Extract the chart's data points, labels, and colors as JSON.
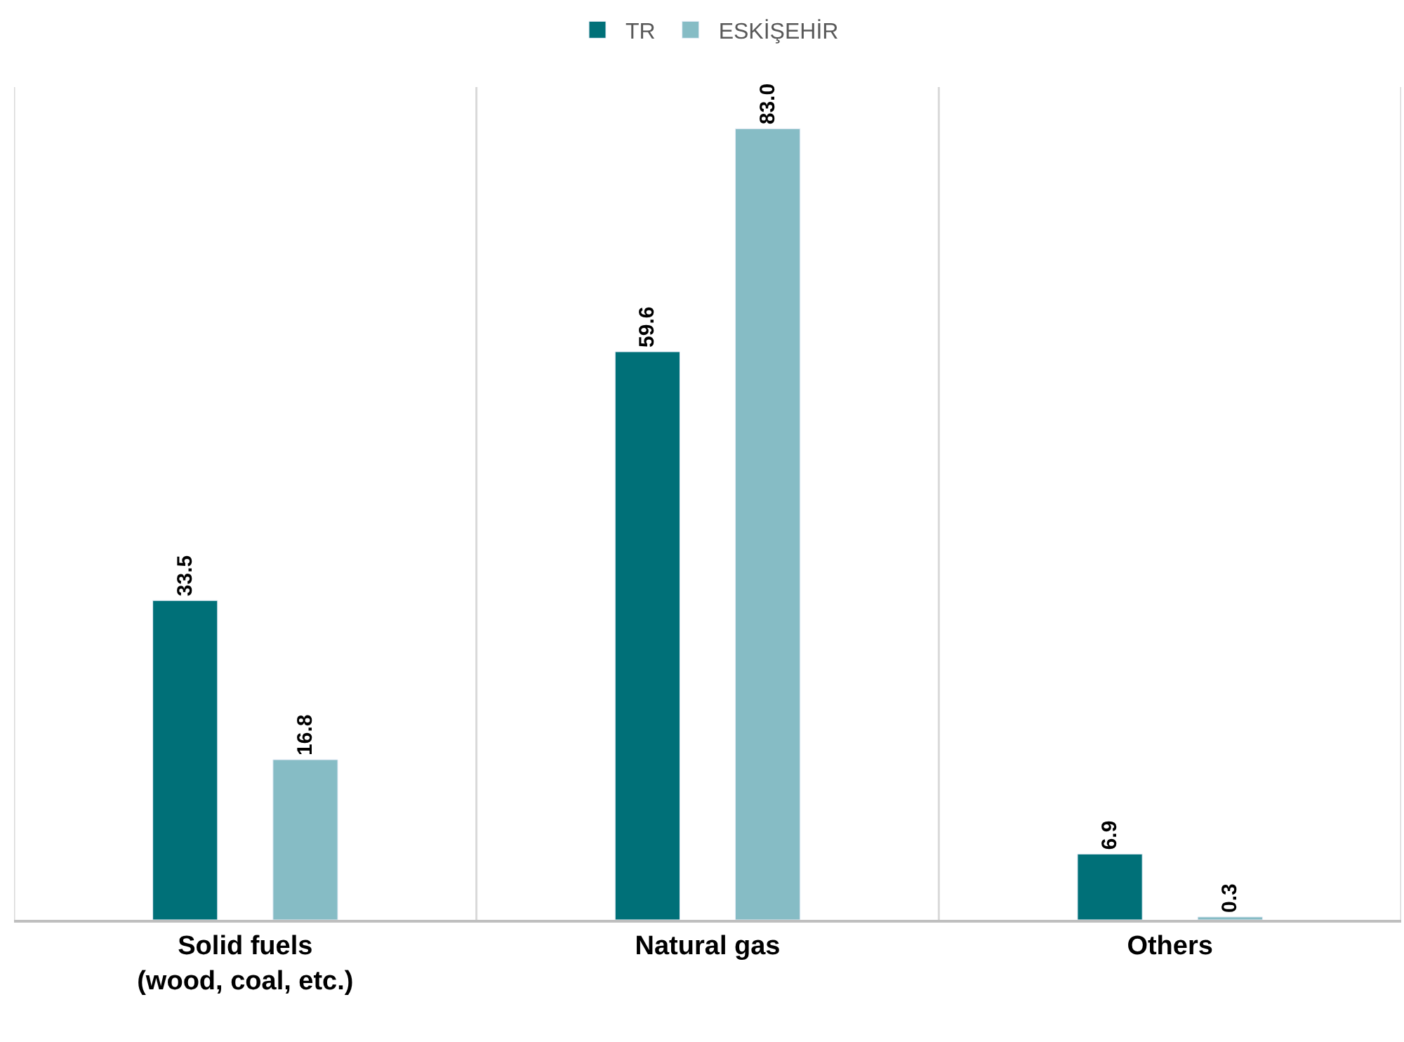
{
  "chart_data": {
    "type": "bar",
    "categories": [
      "Solid fuels\n(wood, coal, etc.)",
      "Natural gas",
      "Others"
    ],
    "series": [
      {
        "name": "TR",
        "color": "#007078",
        "values": [
          33.5,
          59.6,
          6.9
        ],
        "value_labels": [
          "33.5",
          "59.6",
          "6.9"
        ]
      },
      {
        "name": "ESKİŞEHİR",
        "color": "#86bcc5",
        "values": [
          16.8,
          83.0,
          0.3
        ],
        "value_labels": [
          "16.8",
          "83.0",
          "0.3"
        ]
      }
    ],
    "grid": "x",
    "legend": "top",
    "tick_labels": "x"
  }
}
